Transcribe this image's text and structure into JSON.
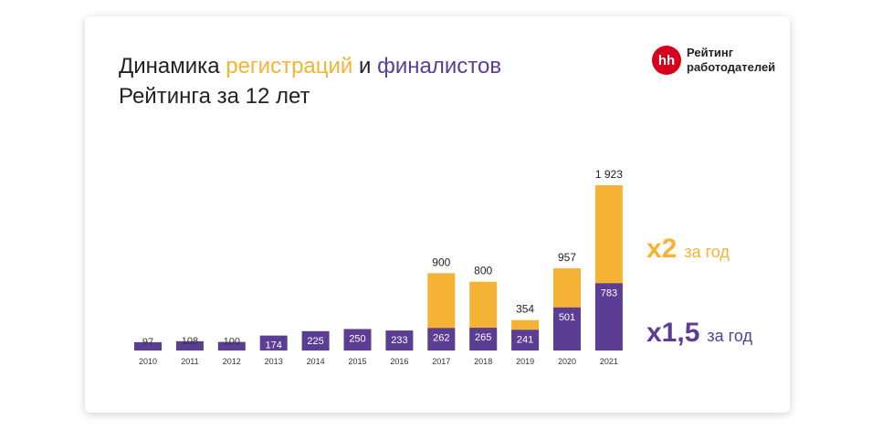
{
  "chart_data": {
    "type": "bar",
    "title_parts": [
      {
        "text": "Динамика ",
        "color": "#222222"
      },
      {
        "text": "регистраций",
        "color": "#f5b335"
      },
      {
        "text": " и ",
        "color": "#222222"
      },
      {
        "text": "финалистов",
        "color": "#5b3d94"
      }
    ],
    "title_line2": "Рейтинга за 12 лет",
    "logo": {
      "mark": "hh",
      "line1": "Рейтинг",
      "line2": "работодателей"
    },
    "categories": [
      "2010",
      "2011",
      "2012",
      "2013",
      "2014",
      "2015",
      "2016",
      "2017",
      "2018",
      "2019",
      "2020",
      "2021"
    ],
    "series": [
      {
        "name": "регистраций",
        "color": "#f5b335",
        "values": [
          null,
          null,
          null,
          null,
          null,
          null,
          null,
          900,
          800,
          354,
          957,
          1923
        ],
        "value_labels": [
          null,
          null,
          null,
          null,
          null,
          null,
          null,
          "900",
          "800",
          "354",
          "957",
          "1 923"
        ]
      },
      {
        "name": "финалистов",
        "color": "#5b3d94",
        "values": [
          97,
          108,
          100,
          174,
          225,
          250,
          233,
          262,
          265,
          241,
          501,
          783
        ]
      }
    ],
    "annotations": [
      {
        "big": "x2",
        "small": "за год",
        "color": "#f5b335"
      },
      {
        "big": "x1,5",
        "small": "за год",
        "color": "#5b3d94"
      }
    ]
  }
}
